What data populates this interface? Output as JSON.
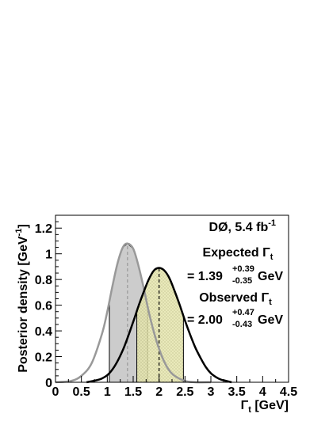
{
  "chart_data": {
    "type": "line",
    "xlim": [
      0,
      4.5
    ],
    "ylim": [
      0,
      1.3
    ],
    "xticks": [
      0,
      0.5,
      1,
      1.5,
      2,
      2.5,
      3,
      3.5,
      4,
      4.5
    ],
    "xtick_labels": [
      "0",
      "0.5",
      "1",
      "1.5",
      "2",
      "2.5",
      "3",
      "3.5",
      "4",
      "4.5"
    ],
    "yticks": [
      0,
      0.2,
      0.4,
      0.6,
      0.8,
      1,
      1.2
    ],
    "ytick_labels": [
      "0",
      "0.2",
      "0.4",
      "0.6",
      "0.8",
      "1",
      "1.2"
    ],
    "xlabel": {
      "main": "Γ",
      "sub": "t",
      "rest": " [GeV]"
    },
    "ylabel": {
      "main": "Posterior density [GeV",
      "sup": "-1",
      "rest": "]"
    },
    "grid": false,
    "series": [
      {
        "role": "expected",
        "color": "#999999",
        "fill": "#cccccc",
        "peak_x": 1.39,
        "peak_y": 1.08,
        "err_minus": 0.35,
        "err_plus": 0.39,
        "band": [
          1.04,
          1.78
        ],
        "x": [
          0.0,
          0.3,
          0.5,
          0.7,
          0.9,
          1.0,
          1.1,
          1.2,
          1.3,
          1.39,
          1.5,
          1.6,
          1.7,
          1.8,
          1.9,
          2.0,
          2.1,
          2.2,
          2.3,
          2.5,
          2.7,
          3.0
        ],
        "y": [
          0.0,
          0.01,
          0.05,
          0.15,
          0.38,
          0.55,
          0.75,
          0.93,
          1.05,
          1.08,
          1.04,
          0.91,
          0.74,
          0.55,
          0.39,
          0.26,
          0.16,
          0.09,
          0.05,
          0.01,
          0.0,
          0.0
        ]
      },
      {
        "role": "observed",
        "color": "#000000",
        "fill": "#e6e6a8",
        "peak_x": 2.0,
        "peak_y": 0.89,
        "err_minus": 0.43,
        "err_plus": 0.47,
        "band": [
          1.57,
          2.47
        ],
        "x": [
          0.6,
          0.9,
          1.1,
          1.3,
          1.5,
          1.6,
          1.7,
          1.8,
          1.9,
          2.0,
          2.1,
          2.2,
          2.3,
          2.4,
          2.5,
          2.6,
          2.7,
          2.8,
          2.9,
          3.0,
          3.1,
          3.2,
          3.3,
          3.4
        ],
        "y": [
          0.0,
          0.03,
          0.1,
          0.25,
          0.47,
          0.59,
          0.7,
          0.8,
          0.87,
          0.89,
          0.87,
          0.81,
          0.71,
          0.6,
          0.48,
          0.37,
          0.27,
          0.19,
          0.12,
          0.07,
          0.04,
          0.02,
          0.01,
          0.0
        ]
      }
    ],
    "annotations": {
      "experiment": "DØ, 5.4 fb",
      "experiment_sup": "-1",
      "expected_title": "Expected ",
      "expected_value": "= 1.39",
      "expected_plus": "+0.39",
      "expected_minus": "-0.35",
      "observed_title": "Observed ",
      "observed_value": "= 2.00",
      "observed_plus": "+0.47",
      "observed_minus": "-0.43",
      "gamma": "Γ",
      "gamma_sub": "t",
      "unit": "GeV"
    }
  }
}
